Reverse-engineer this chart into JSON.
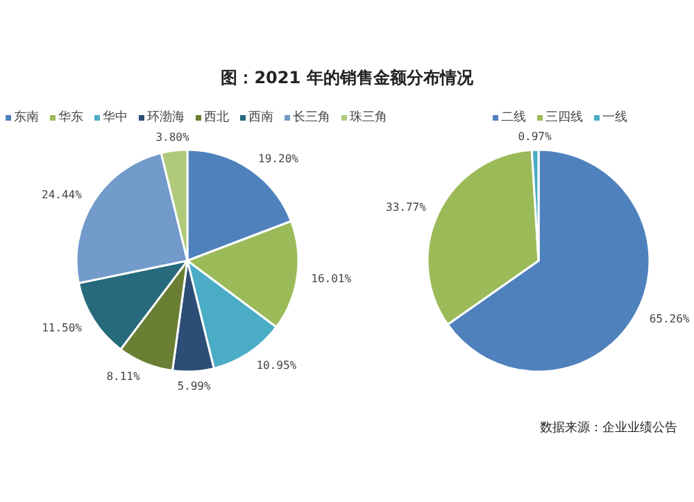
{
  "chart_data": [
    {
      "type": "pie",
      "title": "图：2021 年的销售金额分布情况",
      "categories": [
        "东南",
        "华东",
        "华中",
        "环渤海",
        "西北",
        "西南",
        "长三角",
        "珠三角"
      ],
      "values": [
        19.2,
        16.01,
        10.95,
        5.99,
        8.11,
        11.5,
        24.44,
        3.8
      ],
      "colors": [
        "#4f81bd",
        "#9bbb59",
        "#4bacc6",
        "#2c4d75",
        "#6a7f33",
        "#276a7c",
        "#729aca",
        "#afc97a"
      ],
      "value_labels": [
        "19.20%",
        "16.01%",
        "10.95%",
        "5.99%",
        "8.11%",
        "11.50%",
        "24.44%",
        "3.80%"
      ],
      "legend": "top"
    },
    {
      "type": "pie",
      "categories": [
        "二线",
        "三四线",
        "一线"
      ],
      "values": [
        65.26,
        33.77,
        0.97
      ],
      "colors": [
        "#4f81bd",
        "#9bbb59",
        "#4bacc6"
      ],
      "value_labels": [
        "65.26%",
        "33.77%",
        "0.97%"
      ],
      "legend": "top",
      "annotations": [
        "数据来源：企业业绩公告"
      ]
    }
  ]
}
